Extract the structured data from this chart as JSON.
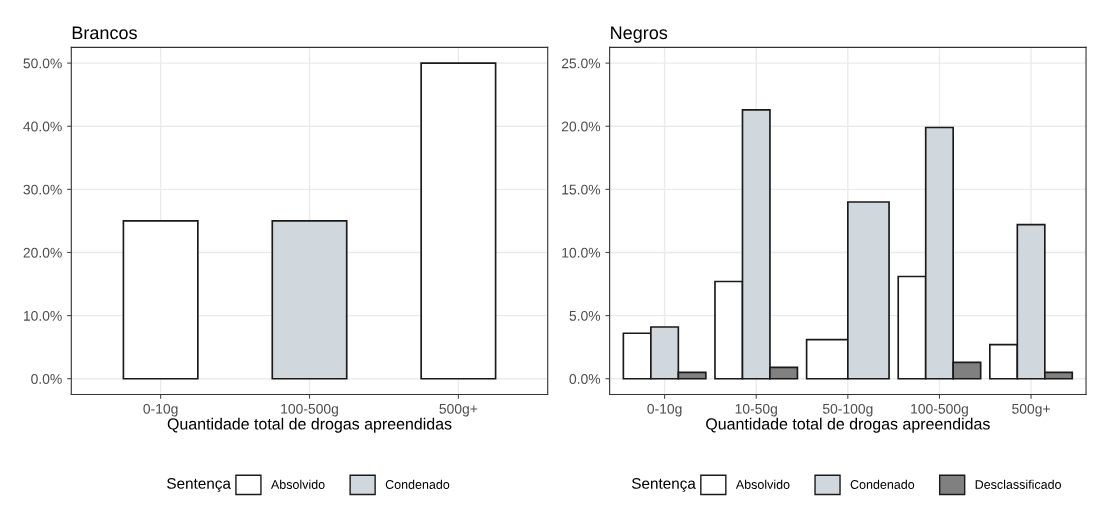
{
  "chart_data": [
    {
      "type": "bar",
      "title": "Brancos",
      "xlabel": "Quantidade total de drogas apreendidas",
      "legend_title": "Sentença",
      "legend": "bottom",
      "grid": true,
      "categories": [
        "0-10g",
        "100-500g",
        "500g+"
      ],
      "series": [
        {
          "name": "Absolvido",
          "color": "#ffffff",
          "values": [
            25,
            null,
            50
          ]
        },
        {
          "name": "Condenado",
          "color": "#d0d7dd",
          "values": [
            null,
            25,
            null
          ]
        }
      ],
      "ylim": [
        -2.5,
        52.5
      ],
      "yticks": [
        {
          "value": 0,
          "label": "0.0%"
        },
        {
          "value": 10,
          "label": "10.0%"
        },
        {
          "value": 20,
          "label": "20.0%"
        },
        {
          "value": 30,
          "label": "30.0%"
        },
        {
          "value": 40,
          "label": "40.0%"
        },
        {
          "value": 50,
          "label": "50.0%"
        }
      ]
    },
    {
      "type": "bar",
      "title": "Negros",
      "xlabel": "Quantidade total de drogas apreendidas",
      "legend_title": "Sentença",
      "legend": "bottom",
      "grid": true,
      "categories": [
        "0-10g",
        "10-50g",
        "50-100g",
        "100-500g",
        "500g+"
      ],
      "series": [
        {
          "name": "Absolvido",
          "color": "#ffffff",
          "values": [
            3.6,
            7.7,
            3.1,
            8.1,
            2.7
          ]
        },
        {
          "name": "Condenado",
          "color": "#d0d7dd",
          "values": [
            4.1,
            21.3,
            14.0,
            19.9,
            12.2
          ]
        },
        {
          "name": "Desclassificado",
          "color": "#808080",
          "values": [
            0.5,
            0.9,
            null,
            1.3,
            0.5
          ]
        }
      ],
      "ylim": [
        -1.25,
        26.25
      ],
      "yticks": [
        {
          "value": 0,
          "label": "0.0%"
        },
        {
          "value": 5,
          "label": "5.0%"
        },
        {
          "value": 10,
          "label": "10.0%"
        },
        {
          "value": 15,
          "label": "15.0%"
        },
        {
          "value": 20,
          "label": "20.0%"
        },
        {
          "value": 25,
          "label": "25.0%"
        }
      ]
    }
  ]
}
